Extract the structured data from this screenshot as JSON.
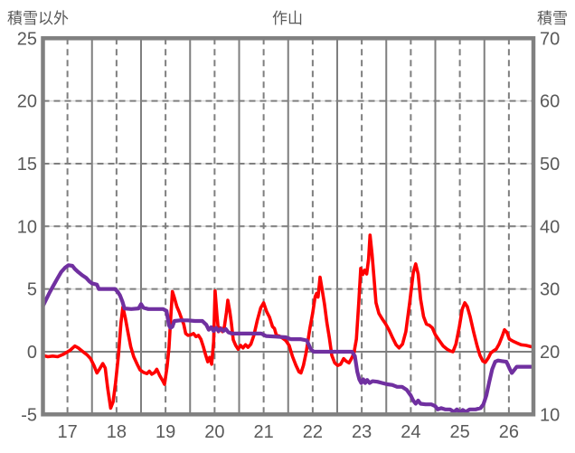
{
  "header": {
    "left_axis_title": "積雪以外",
    "chart_title": "作山",
    "right_axis_title": "積雪"
  },
  "colors": {
    "background": "#ffffff",
    "border": "#808080",
    "grid_dark": "#7f7f7f",
    "grid_light": "#d9d9d9",
    "text": "#595959",
    "series_red": "#ff0000",
    "series_purple": "#7030a0"
  },
  "chart_data": {
    "type": "line",
    "title": "作山",
    "x_axis": {
      "range": [
        17,
        27
      ],
      "tick_labels": [
        "17",
        "18",
        "19",
        "20",
        "21",
        "22",
        "23",
        "24",
        "25",
        "26"
      ],
      "solid_gridlines_at_day_start": true,
      "dashed_gridlines_at_half_day": true
    },
    "left_axis": {
      "title": "積雪以外",
      "range": [
        -5,
        25
      ],
      "ticks": [
        25,
        20,
        15,
        10,
        5,
        0,
        -5
      ],
      "zero_line": "solid",
      "dashed_lines_at": [
        5,
        10,
        15,
        20
      ]
    },
    "right_axis": {
      "title": "積雪",
      "range": [
        10,
        70
      ],
      "ticks": [
        70,
        60,
        50,
        40,
        30,
        20,
        10
      ]
    },
    "legend_position": "none",
    "grid": true,
    "series": [
      {
        "name": "積雪以外",
        "axis": "left",
        "color": "#ff0000",
        "points": [
          [
            17.0,
            -0.3
          ],
          [
            17.1,
            -0.4
          ],
          [
            17.2,
            -0.35
          ],
          [
            17.3,
            -0.4
          ],
          [
            17.42,
            -0.2
          ],
          [
            17.55,
            0.1
          ],
          [
            17.65,
            0.45
          ],
          [
            17.72,
            0.3
          ],
          [
            17.8,
            0.05
          ],
          [
            17.9,
            -0.25
          ],
          [
            17.97,
            -0.55
          ],
          [
            18.04,
            -1.1
          ],
          [
            18.1,
            -1.7
          ],
          [
            18.16,
            -1.35
          ],
          [
            18.22,
            -0.95
          ],
          [
            18.27,
            -1.3
          ],
          [
            18.32,
            -2.9
          ],
          [
            18.38,
            -4.5
          ],
          [
            18.43,
            -4.0
          ],
          [
            18.48,
            -2.5
          ],
          [
            18.54,
            -0.3
          ],
          [
            18.59,
            2.3
          ],
          [
            18.63,
            3.55
          ],
          [
            18.68,
            2.7
          ],
          [
            18.73,
            1.6
          ],
          [
            18.79,
            0.4
          ],
          [
            18.85,
            -0.4
          ],
          [
            18.92,
            -1.0
          ],
          [
            18.98,
            -1.45
          ],
          [
            19.05,
            -1.65
          ],
          [
            19.12,
            -1.75
          ],
          [
            19.17,
            -1.55
          ],
          [
            19.22,
            -1.8
          ],
          [
            19.28,
            -1.65
          ],
          [
            19.32,
            -1.4
          ],
          [
            19.38,
            -1.9
          ],
          [
            19.44,
            -2.3
          ],
          [
            19.48,
            -2.6
          ],
          [
            19.53,
            -1.2
          ],
          [
            19.57,
            0.3
          ],
          [
            19.61,
            3.0
          ],
          [
            19.64,
            4.8
          ],
          [
            19.68,
            4.3
          ],
          [
            19.73,
            3.6
          ],
          [
            19.78,
            3.15
          ],
          [
            19.83,
            2.6
          ],
          [
            19.87,
            2.2
          ],
          [
            19.91,
            1.45
          ],
          [
            19.96,
            1.3
          ],
          [
            20.02,
            1.35
          ],
          [
            20.07,
            1.45
          ],
          [
            20.12,
            1.2
          ],
          [
            20.17,
            1.3
          ],
          [
            20.22,
            1.0
          ],
          [
            20.27,
            0.4
          ],
          [
            20.32,
            -0.3
          ],
          [
            20.36,
            -0.8
          ],
          [
            20.4,
            -0.45
          ],
          [
            20.44,
            -1.0
          ],
          [
            20.48,
            0.8
          ],
          [
            20.51,
            4.85
          ],
          [
            20.55,
            2.8
          ],
          [
            20.58,
            1.6
          ],
          [
            20.62,
            1.9
          ],
          [
            20.66,
            1.6
          ],
          [
            20.7,
            2.0
          ],
          [
            20.74,
            3.1
          ],
          [
            20.77,
            4.1
          ],
          [
            20.81,
            3.2
          ],
          [
            20.84,
            2.35
          ],
          [
            20.88,
            0.95
          ],
          [
            20.93,
            0.5
          ],
          [
            20.98,
            0.2
          ],
          [
            21.03,
            0.5
          ],
          [
            21.08,
            0.3
          ],
          [
            21.13,
            0.55
          ],
          [
            21.18,
            0.35
          ],
          [
            21.24,
            0.6
          ],
          [
            21.3,
            1.3
          ],
          [
            21.37,
            2.5
          ],
          [
            21.44,
            3.5
          ],
          [
            21.5,
            3.9
          ],
          [
            21.56,
            3.2
          ],
          [
            21.62,
            2.75
          ],
          [
            21.68,
            2.0
          ],
          [
            21.72,
            1.85
          ],
          [
            21.76,
            1.3
          ],
          [
            21.82,
            1.25
          ],
          [
            21.88,
            1.1
          ],
          [
            21.95,
            0.9
          ],
          [
            22.02,
            0.5
          ],
          [
            22.09,
            -0.4
          ],
          [
            22.16,
            -1.1
          ],
          [
            22.22,
            -1.6
          ],
          [
            22.26,
            -1.7
          ],
          [
            22.31,
            -1.1
          ],
          [
            22.37,
            0.0
          ],
          [
            22.44,
            1.8
          ],
          [
            22.5,
            3.1
          ],
          [
            22.55,
            4.4
          ],
          [
            22.58,
            4.65
          ],
          [
            22.61,
            4.35
          ],
          [
            22.65,
            5.95
          ],
          [
            22.69,
            5.0
          ],
          [
            22.74,
            3.8
          ],
          [
            22.79,
            2.3
          ],
          [
            22.84,
            1.1
          ],
          [
            22.89,
            -0.3
          ],
          [
            22.95,
            -0.9
          ],
          [
            23.01,
            -1.1
          ],
          [
            23.07,
            -1.0
          ],
          [
            23.13,
            -0.55
          ],
          [
            23.18,
            -0.75
          ],
          [
            23.24,
            -0.9
          ],
          [
            23.29,
            -0.55
          ],
          [
            23.34,
            -0.15
          ],
          [
            23.39,
            1.0
          ],
          [
            23.44,
            4.0
          ],
          [
            23.48,
            6.65
          ],
          [
            23.52,
            6.15
          ],
          [
            23.56,
            6.5
          ],
          [
            23.6,
            6.2
          ],
          [
            23.64,
            7.4
          ],
          [
            23.67,
            9.3
          ],
          [
            23.71,
            7.8
          ],
          [
            23.74,
            6.4
          ],
          [
            23.79,
            3.9
          ],
          [
            23.85,
            3.05
          ],
          [
            23.92,
            2.6
          ],
          [
            23.99,
            2.2
          ],
          [
            24.06,
            1.7
          ],
          [
            24.13,
            1.1
          ],
          [
            24.2,
            0.55
          ],
          [
            24.26,
            0.3
          ],
          [
            24.33,
            0.6
          ],
          [
            24.4,
            1.6
          ],
          [
            24.48,
            4.0
          ],
          [
            24.55,
            6.3
          ],
          [
            24.6,
            7.0
          ],
          [
            24.65,
            6.2
          ],
          [
            24.7,
            4.2
          ],
          [
            24.76,
            2.8
          ],
          [
            24.82,
            2.2
          ],
          [
            24.88,
            2.1
          ],
          [
            24.94,
            1.9
          ],
          [
            25.0,
            1.35
          ],
          [
            25.08,
            0.9
          ],
          [
            25.16,
            0.45
          ],
          [
            25.24,
            0.2
          ],
          [
            25.31,
            0.05
          ],
          [
            25.36,
            0.0
          ],
          [
            25.42,
            0.6
          ],
          [
            25.49,
            2.0
          ],
          [
            25.55,
            3.4
          ],
          [
            25.6,
            3.9
          ],
          [
            25.65,
            3.6
          ],
          [
            25.71,
            2.8
          ],
          [
            25.78,
            1.6
          ],
          [
            25.85,
            0.5
          ],
          [
            25.91,
            -0.3
          ],
          [
            25.97,
            -0.75
          ],
          [
            26.02,
            -0.85
          ],
          [
            26.08,
            -0.5
          ],
          [
            26.13,
            -0.1
          ],
          [
            26.18,
            0.05
          ],
          [
            26.24,
            0.2
          ],
          [
            26.3,
            0.6
          ],
          [
            26.36,
            1.2
          ],
          [
            26.41,
            1.75
          ],
          [
            26.46,
            1.55
          ],
          [
            26.51,
            1.0
          ],
          [
            26.58,
            0.85
          ],
          [
            26.66,
            0.7
          ],
          [
            26.75,
            0.55
          ],
          [
            26.85,
            0.5
          ],
          [
            26.95,
            0.4
          ]
        ]
      },
      {
        "name": "積雪",
        "axis": "right",
        "color": "#7030a0",
        "points": [
          [
            17.0,
            27.3
          ],
          [
            17.07,
            28.4
          ],
          [
            17.14,
            29.5
          ],
          [
            17.21,
            30.5
          ],
          [
            17.29,
            31.6
          ],
          [
            17.37,
            32.7
          ],
          [
            17.45,
            33.4
          ],
          [
            17.52,
            33.8
          ],
          [
            17.6,
            33.7
          ],
          [
            17.65,
            33.2
          ],
          [
            17.72,
            32.7
          ],
          [
            17.8,
            32.2
          ],
          [
            17.88,
            31.8
          ],
          [
            17.95,
            31.2
          ],
          [
            18.0,
            30.9
          ],
          [
            18.1,
            30.7
          ],
          [
            18.14,
            30.0
          ],
          [
            18.3,
            30.0
          ],
          [
            18.47,
            30.0
          ],
          [
            18.53,
            29.5
          ],
          [
            18.57,
            29.0
          ],
          [
            18.62,
            28.0
          ],
          [
            18.66,
            26.9
          ],
          [
            18.8,
            26.8
          ],
          [
            18.95,
            26.9
          ],
          [
            19.0,
            27.6
          ],
          [
            19.05,
            27.0
          ],
          [
            19.15,
            26.8
          ],
          [
            19.3,
            26.8
          ],
          [
            19.45,
            26.8
          ],
          [
            19.52,
            26.5
          ],
          [
            19.57,
            24.2
          ],
          [
            19.6,
            23.8
          ],
          [
            19.64,
            24.0
          ],
          [
            19.68,
            24.9
          ],
          [
            19.8,
            25.0
          ],
          [
            19.95,
            25.0
          ],
          [
            20.1,
            24.9
          ],
          [
            20.25,
            24.9
          ],
          [
            20.33,
            24.3
          ],
          [
            20.38,
            23.5
          ],
          [
            20.43,
            23.9
          ],
          [
            20.48,
            23.3
          ],
          [
            20.53,
            23.8
          ],
          [
            20.58,
            23.3
          ],
          [
            20.63,
            23.7
          ],
          [
            20.68,
            23.3
          ],
          [
            20.73,
            23.6
          ],
          [
            20.78,
            23.1
          ],
          [
            20.85,
            22.9
          ],
          [
            21.0,
            22.9
          ],
          [
            21.2,
            22.9
          ],
          [
            21.45,
            22.9
          ],
          [
            21.55,
            22.5
          ],
          [
            21.75,
            22.4
          ],
          [
            21.95,
            22.3
          ],
          [
            22.05,
            22.0
          ],
          [
            22.25,
            22.0
          ],
          [
            22.38,
            21.8
          ],
          [
            22.46,
            20.4
          ],
          [
            22.52,
            20.0
          ],
          [
            22.7,
            20.0
          ],
          [
            22.9,
            20.0
          ],
          [
            23.1,
            20.0
          ],
          [
            23.3,
            20.0
          ],
          [
            23.36,
            19.3
          ],
          [
            23.41,
            16.8
          ],
          [
            23.45,
            15.6
          ],
          [
            23.49,
            15.0
          ],
          [
            23.53,
            15.6
          ],
          [
            23.57,
            15.0
          ],
          [
            23.61,
            15.5
          ],
          [
            23.66,
            15.0
          ],
          [
            23.72,
            15.3
          ],
          [
            23.82,
            15.2
          ],
          [
            23.92,
            15.0
          ],
          [
            24.02,
            14.8
          ],
          [
            24.12,
            14.7
          ],
          [
            24.22,
            14.4
          ],
          [
            24.32,
            14.4
          ],
          [
            24.42,
            13.9
          ],
          [
            24.5,
            13.0
          ],
          [
            24.55,
            12.2
          ],
          [
            24.6,
            11.7
          ],
          [
            24.65,
            12.2
          ],
          [
            24.7,
            11.7
          ],
          [
            24.8,
            11.6
          ],
          [
            24.92,
            11.6
          ],
          [
            25.0,
            11.3
          ],
          [
            25.05,
            10.8
          ],
          [
            25.12,
            11.0
          ],
          [
            25.2,
            10.8
          ],
          [
            25.3,
            10.8
          ],
          [
            25.38,
            10.4
          ],
          [
            25.44,
            10.8
          ],
          [
            25.5,
            10.3
          ],
          [
            25.56,
            10.7
          ],
          [
            25.62,
            10.4
          ],
          [
            25.7,
            10.8
          ],
          [
            25.82,
            10.8
          ],
          [
            25.92,
            11.0
          ],
          [
            25.98,
            11.6
          ],
          [
            26.04,
            13.0
          ],
          [
            26.1,
            15.2
          ],
          [
            26.16,
            17.2
          ],
          [
            26.22,
            18.4
          ],
          [
            26.28,
            18.6
          ],
          [
            26.36,
            18.5
          ],
          [
            26.45,
            18.4
          ],
          [
            26.52,
            17.2
          ],
          [
            26.56,
            16.6
          ],
          [
            26.6,
            17.0
          ],
          [
            26.66,
            17.6
          ],
          [
            26.8,
            17.6
          ],
          [
            26.95,
            17.6
          ]
        ]
      }
    ]
  }
}
